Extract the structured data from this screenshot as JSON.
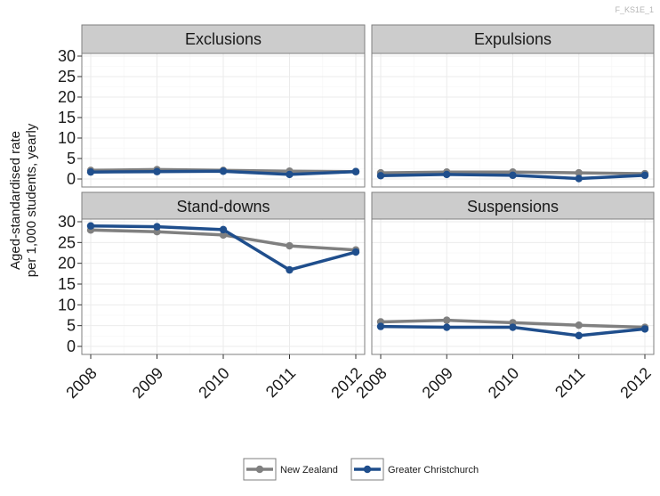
{
  "figure_code": "F_KS1E_1",
  "ylabel_lines": [
    "Aged-standardised rate",
    "per 1,000 students, yearly"
  ],
  "colors": {
    "new_zealand": "#808080",
    "greater_christchurch": "#1f4e8c"
  },
  "chart_data": {
    "type": "line",
    "facets": [
      "Exclusions",
      "Expulsions",
      "Stand-downs",
      "Suspensions"
    ],
    "x": [
      "2008",
      "2009",
      "2010",
      "2011",
      "2012"
    ],
    "ylim": [
      0,
      30
    ],
    "yticks": [
      0,
      5,
      10,
      15,
      20,
      25,
      30
    ],
    "grid": true,
    "legend_position": "bottom",
    "series": [
      {
        "name": "New Zealand",
        "color": "#808080",
        "values": {
          "Exclusions": [
            2.1,
            2.3,
            2.1,
            1.9,
            1.8
          ],
          "Expulsions": [
            1.5,
            1.7,
            1.7,
            1.5,
            1.3
          ],
          "Stand-downs": [
            28.0,
            27.6,
            26.8,
            24.2,
            23.2
          ],
          "Suspensions": [
            5.9,
            6.3,
            5.7,
            5.1,
            4.6
          ]
        }
      },
      {
        "name": "Greater Christchurch",
        "color": "#1f4e8c",
        "values": {
          "Exclusions": [
            1.7,
            1.8,
            1.9,
            1.1,
            1.8
          ],
          "Expulsions": [
            0.8,
            1.1,
            0.9,
            0.1,
            0.9
          ],
          "Stand-downs": [
            29.0,
            28.8,
            28.1,
            18.4,
            22.7
          ],
          "Suspensions": [
            4.8,
            4.6,
            4.6,
            2.6,
            4.2
          ]
        }
      }
    ]
  }
}
